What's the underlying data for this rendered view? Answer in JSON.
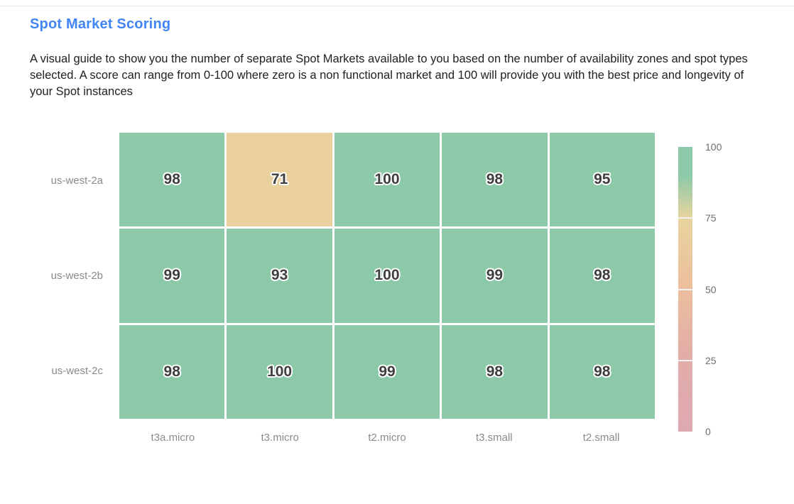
{
  "page": {
    "title": "Spot Market Scoring",
    "description": "A visual guide to show you the number of separate Spot Markets available to you based on the number of availability zones and spot types selected. A score can range from 0-100 where zero is a non functional market and 100 will provide you with the best price and longevity of your Spot instances"
  },
  "colors": {
    "title": "#4285F4",
    "body_text": "#202124",
    "axis_label": "#8b8b8b",
    "cell_text": "#3f3f3f",
    "top_border": "#e7e7e7",
    "green_cell": "#8CC9A8",
    "tan_cell": "#E9D09E",
    "pink_low": "#DFA9B2"
  },
  "chart_data": {
    "type": "heatmap",
    "title": "Spot Market Scoring",
    "xlabel": "",
    "ylabel": "",
    "rows": [
      "us-west-2a",
      "us-west-2b",
      "us-west-2c"
    ],
    "columns": [
      "t3a.micro",
      "t3.micro",
      "t2.micro",
      "t3.small",
      "t2.small"
    ],
    "values": [
      [
        98,
        71,
        100,
        98,
        95
      ],
      [
        99,
        93,
        100,
        99,
        98
      ],
      [
        98,
        100,
        99,
        98,
        98
      ]
    ],
    "value_range": [
      0,
      100
    ],
    "grid": false,
    "legend_position": "right",
    "colorbar": {
      "ticks": [
        100,
        75,
        50,
        25,
        0
      ],
      "min": 0,
      "max": 100,
      "stops": [
        {
          "value": 0,
          "color": "#DFA9B2"
        },
        {
          "value": 25,
          "color": "#E1ACA8"
        },
        {
          "value": 50,
          "color": "#ECBE9D"
        },
        {
          "value": 75,
          "color": "#E8D49E"
        },
        {
          "value": 90,
          "color": "#8CC9A8"
        },
        {
          "value": 100,
          "color": "#8CC9A8"
        }
      ]
    }
  }
}
